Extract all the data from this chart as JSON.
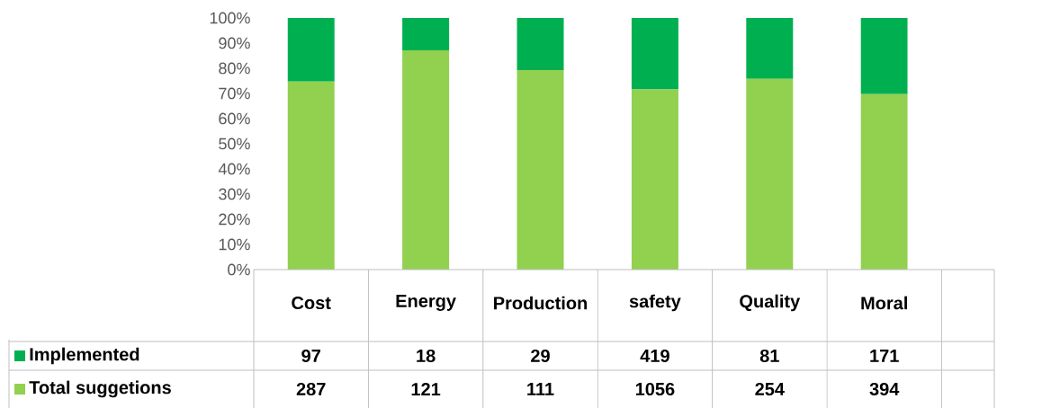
{
  "chart_data": [
    {
      "type": "bar",
      "stacked": true,
      "categories": [
        "Cost",
        "Energy",
        "Production",
        "safety",
        "Quality",
        "Moral"
      ],
      "ylim": [
        0,
        100
      ],
      "yticks": [
        {
          "value": 0,
          "label": "0%"
        },
        {
          "value": 10,
          "label": "10%"
        },
        {
          "value": 20,
          "label": "20%"
        },
        {
          "value": 30,
          "label": "30%"
        },
        {
          "value": 40,
          "label": "40%"
        },
        {
          "value": 50,
          "label": "50%"
        },
        {
          "value": 60,
          "label": "60%"
        },
        {
          "value": 70,
          "label": "70%"
        },
        {
          "value": 80,
          "label": "80%"
        },
        {
          "value": 90,
          "label": "90%"
        },
        {
          "value": 100,
          "label": "100%"
        }
      ],
      "legend": "bottom",
      "series": [
        {
          "name": "Total suggetions",
          "color": "#92d050",
          "values": [
            74.7,
            87.1,
            79.3,
            71.6,
            75.8,
            69.7
          ]
        },
        {
          "name": "Implemented",
          "color": "#00b050",
          "values": [
            25.3,
            12.9,
            20.7,
            28.4,
            24.2,
            30.3
          ]
        }
      ]
    },
    {
      "type": "other",
      "annotations": [
        "97",
        "18",
        "29",
        "419",
        "81",
        "171",
        "287",
        "121",
        "111",
        "1056",
        "254",
        "394"
      ]
    }
  ]
}
